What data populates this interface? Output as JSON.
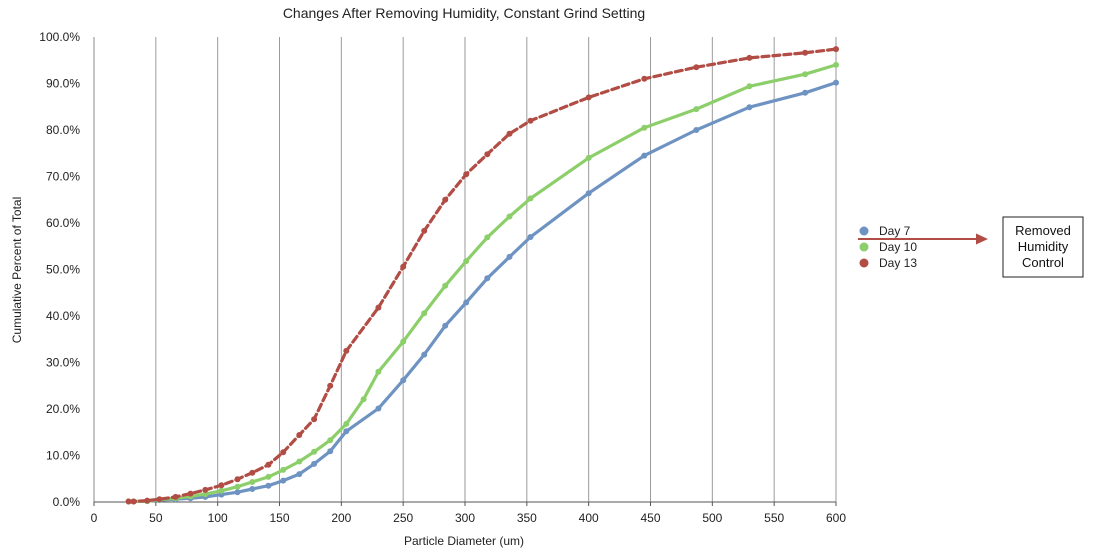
{
  "chart_data": {
    "type": "line",
    "title": "Changes After Removing Humidity, Constant Grind Setting",
    "xlabel": "Particle Diameter (um)",
    "ylabel": "Cumulative Percent of Total",
    "xlim": [
      0,
      600
    ],
    "ylim": [
      0,
      100
    ],
    "x_ticks": [
      "0",
      "50",
      "100",
      "150",
      "200",
      "250",
      "300",
      "350",
      "400",
      "450",
      "500",
      "550",
      "600"
    ],
    "y_ticks": [
      "0.0%",
      "10.0%",
      "20.0%",
      "30.0%",
      "40.0%",
      "50.0%",
      "60.0%",
      "70.0%",
      "80.0%",
      "90.0%",
      "100.0%"
    ],
    "grid": "vertical",
    "legend_position": "right",
    "series": [
      {
        "name": "Day 7",
        "color": "#6e93c2",
        "dash": false,
        "points": [
          [
            28,
            0.1
          ],
          [
            32,
            0.1
          ],
          [
            43,
            0.2
          ],
          [
            53,
            0.4
          ],
          [
            66,
            0.6
          ],
          [
            78,
            0.8
          ],
          [
            90,
            1.1
          ],
          [
            103,
            1.6
          ],
          [
            116,
            2.1
          ],
          [
            128,
            2.8
          ],
          [
            141,
            3.5
          ],
          [
            153,
            4.6
          ],
          [
            166,
            6.0
          ],
          [
            178,
            8.2
          ],
          [
            191,
            10.9
          ],
          [
            204,
            15.2
          ],
          [
            230,
            20.1
          ],
          [
            250,
            26.2
          ],
          [
            267,
            31.7
          ],
          [
            284,
            37.9
          ],
          [
            301,
            42.9
          ],
          [
            318,
            48.1
          ],
          [
            336,
            52.7
          ],
          [
            353,
            57.0
          ],
          [
            400,
            66.4
          ],
          [
            445,
            74.5
          ],
          [
            487,
            80.0
          ],
          [
            530,
            84.9
          ],
          [
            575,
            88.0
          ],
          [
            600,
            90.2
          ]
        ]
      },
      {
        "name": "Day 10",
        "color": "#8ccf6a",
        "dash": false,
        "points": [
          [
            28,
            0.1
          ],
          [
            32,
            0.1
          ],
          [
            43,
            0.2
          ],
          [
            53,
            0.5
          ],
          [
            66,
            0.8
          ],
          [
            78,
            1.2
          ],
          [
            90,
            1.7
          ],
          [
            103,
            2.4
          ],
          [
            116,
            3.3
          ],
          [
            128,
            4.3
          ],
          [
            141,
            5.4
          ],
          [
            153,
            6.9
          ],
          [
            166,
            8.7
          ],
          [
            178,
            10.8
          ],
          [
            191,
            13.3
          ],
          [
            204,
            16.8
          ],
          [
            218,
            22.1
          ],
          [
            230,
            28.0
          ],
          [
            250,
            34.5
          ],
          [
            267,
            40.6
          ],
          [
            284,
            46.5
          ],
          [
            301,
            51.8
          ],
          [
            318,
            56.9
          ],
          [
            336,
            61.4
          ],
          [
            353,
            65.3
          ],
          [
            400,
            74.0
          ],
          [
            445,
            80.5
          ],
          [
            487,
            84.5
          ],
          [
            530,
            89.4
          ],
          [
            575,
            92.0
          ],
          [
            600,
            94.0
          ]
        ]
      },
      {
        "name": "Day 13",
        "color": "#b14d45",
        "dash": true,
        "points": [
          [
            28,
            0.1
          ],
          [
            32,
            0.1
          ],
          [
            43,
            0.3
          ],
          [
            53,
            0.6
          ],
          [
            66,
            1.1
          ],
          [
            78,
            1.8
          ],
          [
            90,
            2.6
          ],
          [
            103,
            3.6
          ],
          [
            116,
            4.9
          ],
          [
            128,
            6.3
          ],
          [
            141,
            8.0
          ],
          [
            153,
            10.7
          ],
          [
            166,
            14.4
          ],
          [
            178,
            17.8
          ],
          [
            191,
            25.0
          ],
          [
            204,
            32.5
          ],
          [
            230,
            41.8
          ],
          [
            250,
            50.6
          ],
          [
            267,
            58.3
          ],
          [
            284,
            65.0
          ],
          [
            301,
            70.5
          ],
          [
            318,
            74.8
          ],
          [
            336,
            79.2
          ],
          [
            353,
            82.0
          ],
          [
            400,
            87.0
          ],
          [
            445,
            91.0
          ],
          [
            487,
            93.5
          ],
          [
            530,
            95.5
          ],
          [
            575,
            96.6
          ],
          [
            600,
            97.4
          ]
        ]
      }
    ],
    "annotation": {
      "lines": [
        "Removed",
        "Humidity",
        "Control"
      ],
      "arrow_color": "#b14d45"
    }
  }
}
